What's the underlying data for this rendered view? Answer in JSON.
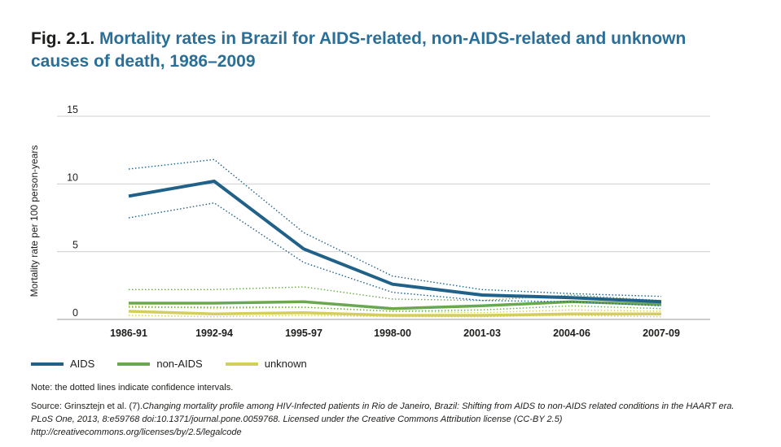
{
  "figure": {
    "fig_label": "Fig. 2.1.",
    "title": "Mortality rates in Brazil for AIDS-related, non-AIDS-related and unknown causes of death, 1986–2009"
  },
  "note": "Note: the dotted lines indicate confidence intervals.",
  "source": {
    "prefix": "Source: Grinsztejn et al. (7).",
    "citation": "Changing mortality profile among HIV-Infected patients in Rio de Janeiro, Brazil: Shifting from AIDS to non-AIDS related conditions in the HAART era. PLoS One, 2013, 8:e59768 doi:10.1371/journal.pone.0059768. Licensed under the Creative Commons Attribution license (CC-BY 2.5) http://creativecommons.org/licenses/by/2.5/legalcode"
  },
  "chart_data": {
    "type": "line",
    "title": "Mortality rates in Brazil for AIDS-related, non-AIDS-related and unknown causes of death, 1986–2009",
    "xlabel": "",
    "ylabel": "Mortality rate per 100 person-years",
    "categories": [
      "1986-91",
      "1992-94",
      "1995-97",
      "1998-00",
      "2001-03",
      "2004-06",
      "2007-09"
    ],
    "ylim": [
      0,
      15
    ],
    "yticks": [
      0,
      5,
      10,
      15
    ],
    "grid": true,
    "legend_position": "bottom-left",
    "series": [
      {
        "name": "AIDS",
        "color": "#1f6189",
        "values": [
          9.1,
          10.2,
          5.2,
          2.6,
          1.8,
          1.6,
          1.3
        ],
        "ci_upper": [
          11.1,
          11.8,
          6.4,
          3.2,
          2.2,
          1.9,
          1.7
        ],
        "ci_lower": [
          7.5,
          8.6,
          4.2,
          2.0,
          1.4,
          1.3,
          1.0
        ]
      },
      {
        "name": "non-AIDS",
        "color": "#6aa84f",
        "values": [
          1.2,
          1.2,
          1.3,
          0.8,
          1.0,
          1.3,
          1.1
        ],
        "ci_upper": [
          2.2,
          2.2,
          2.4,
          1.5,
          1.4,
          1.8,
          1.4
        ],
        "ci_lower": [
          0.9,
          0.9,
          0.9,
          0.6,
          0.7,
          1.0,
          0.8
        ]
      },
      {
        "name": "unknown",
        "color": "#d4cf5c",
        "values": [
          0.6,
          0.4,
          0.5,
          0.3,
          0.3,
          0.4,
          0.4
        ],
        "ci_upper": [
          1.0,
          0.8,
          0.9,
          0.6,
          0.5,
          0.7,
          0.6
        ],
        "ci_lower": [
          0.3,
          0.2,
          0.3,
          0.2,
          0.2,
          0.3,
          0.2
        ]
      }
    ]
  }
}
